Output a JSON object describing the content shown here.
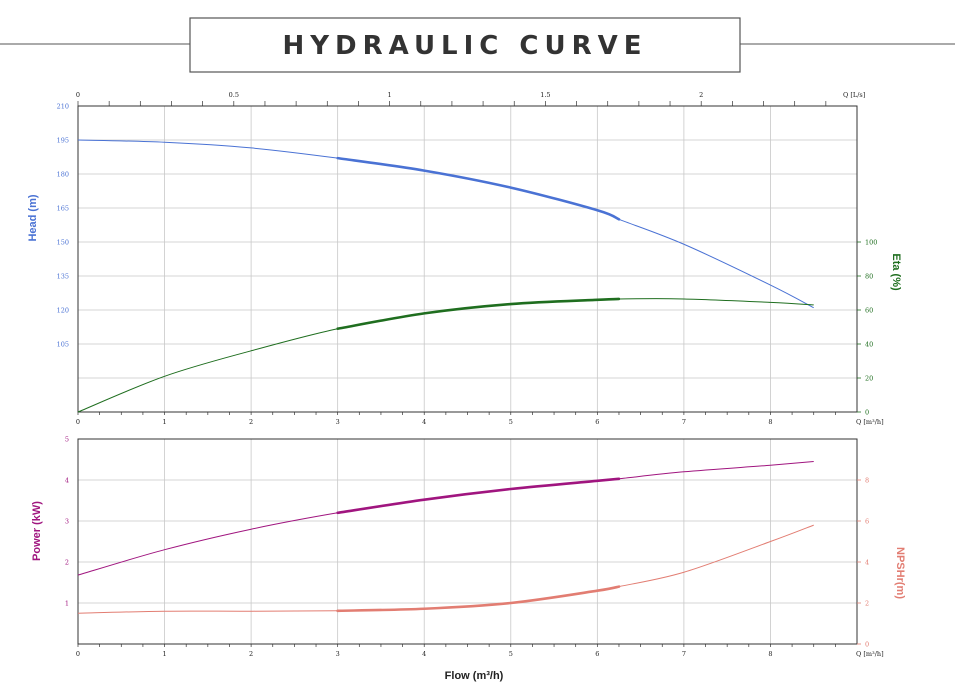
{
  "title": "HYDRAULIC CURVE",
  "colors": {
    "head": "#4a72d4",
    "eta": "#1f6e1f",
    "power": "#a0157f",
    "npsh": "#e27d72",
    "grid": "#c8c8c8",
    "frame": "#333333"
  },
  "chart_data": [
    {
      "type": "line",
      "panel": "top",
      "xlabel": "Q [m³/h]",
      "xlabel_top": "Q [L/s]",
      "ylabel": "Head (m)",
      "ylabel_right": "Eta (%)",
      "xlim": [
        0,
        9
      ],
      "ylim": [
        75,
        210
      ],
      "ylim_right": [
        0,
        180
      ],
      "x_ticks": [
        0,
        1,
        2,
        3,
        4,
        5,
        6,
        7,
        8
      ],
      "x_ticks_top": [
        0,
        0.5,
        1,
        1.5,
        2
      ],
      "y_ticks": [
        105,
        120,
        135,
        150,
        165,
        180,
        195,
        210
      ],
      "y_ticks_right": [
        0,
        20,
        40,
        60,
        80,
        100
      ],
      "grid": true,
      "series": [
        {
          "name": "Head (m)",
          "axis": "left",
          "x": [
            0,
            1,
            2,
            3,
            4,
            5,
            6,
            6.25,
            7,
            8,
            8.5
          ],
          "values": [
            195,
            194,
            191.5,
            187,
            181.5,
            174,
            164,
            160,
            149,
            131,
            121
          ],
          "bold_range": [
            3,
            6.25
          ]
        },
        {
          "name": "Eta (%)",
          "axis": "right",
          "x": [
            0,
            1,
            2,
            3,
            4,
            5,
            6,
            6.25,
            7,
            8,
            8.5
          ],
          "values": [
            0,
            21,
            36,
            49,
            58,
            63.5,
            66,
            66.5,
            66.5,
            64.5,
            63
          ],
          "bold_range": [
            3,
            6.25
          ]
        }
      ]
    },
    {
      "type": "line",
      "panel": "bottom",
      "xlabel": "Flow (m³/h)",
      "xlabel_axis": "Q [m³/h]",
      "ylabel": "Power (kW)",
      "ylabel_right": "NPSHr(m)",
      "xlim": [
        0,
        9
      ],
      "ylim": [
        0,
        5
      ],
      "ylim_right": [
        0,
        10
      ],
      "x_ticks": [
        0,
        1,
        2,
        3,
        4,
        5,
        6,
        7,
        8
      ],
      "y_ticks": [
        1,
        2,
        3,
        4,
        5
      ],
      "y_ticks_right": [
        0,
        2,
        4,
        6,
        8
      ],
      "grid": true,
      "series": [
        {
          "name": "Power (kW)",
          "axis": "left",
          "x": [
            0,
            1,
            2,
            3,
            4,
            5,
            6,
            6.25,
            7,
            8,
            8.5
          ],
          "values": [
            1.68,
            2.3,
            2.8,
            3.2,
            3.52,
            3.78,
            3.98,
            4.03,
            4.2,
            4.36,
            4.45
          ],
          "bold_range": [
            3,
            6.25
          ]
        },
        {
          "name": "NPSHr(m)",
          "axis": "right",
          "x": [
            0,
            1,
            2,
            3,
            4,
            5,
            6,
            6.25,
            7,
            8,
            8.5
          ],
          "values": [
            1.5,
            1.6,
            1.6,
            1.62,
            1.72,
            2.0,
            2.6,
            2.8,
            3.5,
            5.0,
            5.8
          ],
          "bold_range": [
            3,
            6.25
          ]
        }
      ]
    }
  ]
}
